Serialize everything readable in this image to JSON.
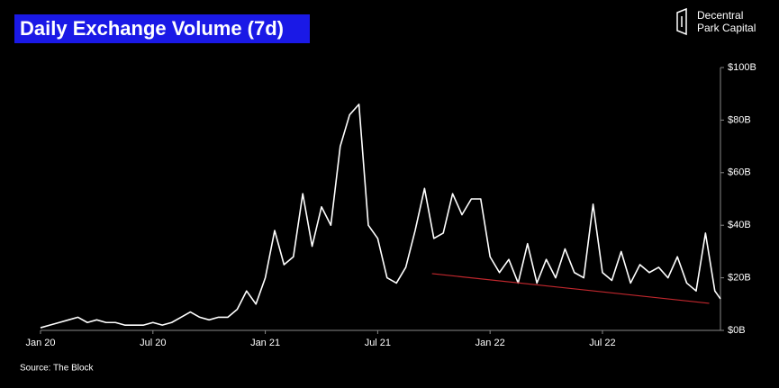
{
  "chart_data": {
    "type": "line",
    "title": "Daily Exchange Volume (7d)",
    "brand": [
      "Decentral",
      "Park Capital"
    ],
    "source": "Source: The Block",
    "x": [
      0,
      0.5,
      1,
      1.5,
      2,
      2.5,
      3,
      3.5,
      4,
      4.5,
      5,
      5.5,
      6,
      6.5,
      7,
      7.5,
      8,
      8.5,
      9,
      9.5,
      10,
      10.5,
      11,
      11.5,
      12,
      12.5,
      13,
      13.5,
      14,
      14.5,
      15,
      15.5,
      16,
      16.5,
      17,
      17.5,
      18,
      18.5,
      19,
      19.5,
      20,
      20.5,
      21,
      21.5,
      22,
      22.5,
      23,
      23.5,
      24,
      24.5,
      25,
      25.5,
      26,
      26.5,
      27,
      27.5,
      28,
      28.5,
      29,
      29.5,
      30,
      30.5,
      31,
      31.5,
      32,
      32.5,
      33,
      33.5,
      34,
      34.5,
      35,
      35.5,
      36,
      36.3
    ],
    "series": [
      {
        "color": "#ffffff",
        "values": [
          1,
          2,
          3,
          4,
          5,
          3,
          4,
          3,
          3,
          2,
          2,
          2,
          3,
          2,
          3,
          5,
          7,
          5,
          4,
          5,
          5,
          8,
          15,
          10,
          20,
          38,
          25,
          28,
          52,
          32,
          47,
          40,
          70,
          82,
          86,
          40,
          35,
          20,
          18,
          24,
          38,
          54,
          35,
          37,
          52,
          44,
          50,
          50,
          28,
          22,
          27,
          18,
          33,
          18,
          27,
          20,
          31,
          22,
          20,
          48,
          22,
          19,
          30,
          18,
          25,
          22,
          24,
          20,
          28,
          18,
          15,
          37,
          15,
          12
        ]
      }
    ],
    "trendline": {
      "x": [
        20.9,
        35.7
      ],
      "values": [
        21.6,
        10.3
      ],
      "color": "#c0272d"
    },
    "xlim": [
      0,
      36.3
    ],
    "xticks": [
      {
        "value": 0,
        "label": "Jan 20"
      },
      {
        "value": 6,
        "label": "Jul 20"
      },
      {
        "value": 12,
        "label": "Jan 21"
      },
      {
        "value": 18,
        "label": "Jul 21"
      },
      {
        "value": 24,
        "label": "Jan 22"
      },
      {
        "value": 30,
        "label": "Jul 22"
      }
    ],
    "ylim": [
      0,
      100
    ],
    "yticks": [
      {
        "value": 0,
        "label": "$0B"
      },
      {
        "value": 20,
        "label": "$20B"
      },
      {
        "value": 40,
        "label": "$40B"
      },
      {
        "value": 60,
        "label": "$60B"
      },
      {
        "value": 80,
        "label": "$80B"
      },
      {
        "value": 100,
        "label": "$100B"
      }
    ]
  }
}
